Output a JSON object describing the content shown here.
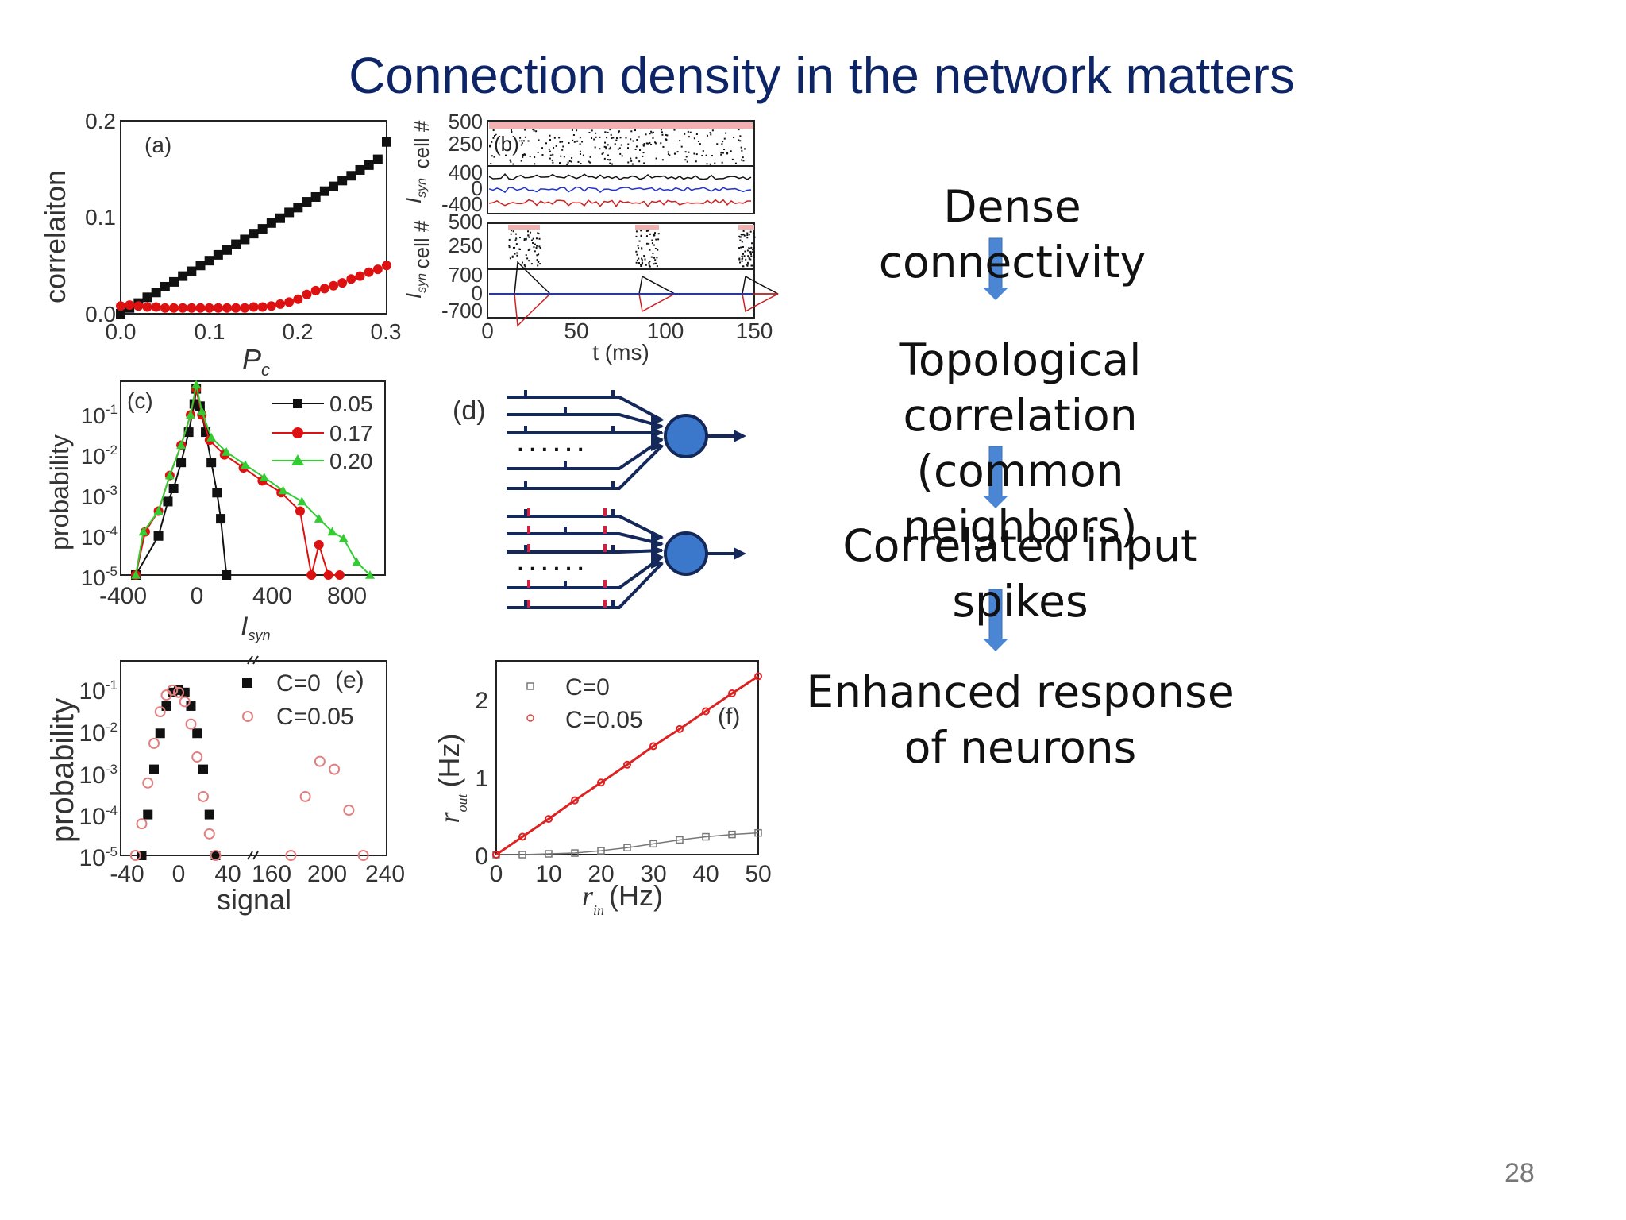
{
  "slide": {
    "title": "Connection density in the network matters",
    "page_number": "28"
  },
  "flow": {
    "step1": "Dense connectivity",
    "step2_line1": "Topological correlation",
    "step2_line2": "(common neighbors)",
    "step3": "Correlated input spikes",
    "step4_line1": "Enhanced response",
    "step4_line2": "of neurons",
    "arrow_color": "#4a86d4"
  },
  "panel_a": {
    "label": "(a)",
    "ylabel": "correlaiton",
    "xlabel": "P",
    "xlabel_sub": "c",
    "xticks": [
      "0.0",
      "0.1",
      "0.2",
      "0.3"
    ],
    "yticks": [
      "0.0",
      "0.1",
      "0.2"
    ]
  },
  "panel_b": {
    "label": "(b)",
    "xlabel": "t (ms)",
    "xticks": [
      "0",
      "50",
      "100",
      "150"
    ],
    "ylabel_cell": "cell #",
    "ylabel_isyn": "I",
    "ylabel_isyn_sub": "syn",
    "raster_ticks": [
      "500",
      "250"
    ],
    "isyn_top_ticks": [
      "400",
      "0",
      "-400"
    ],
    "isyn_bottom_ticks": [
      "700",
      "0",
      "-700"
    ]
  },
  "panel_c": {
    "label": "(c)",
    "ylabel": "probability",
    "xlabel": "I",
    "xlabel_sub": "syn",
    "xticks": [
      "-400",
      "0",
      "400",
      "800"
    ],
    "yticks": [
      "10",
      "10",
      "10",
      "10",
      "10"
    ],
    "ytick_exps": [
      "-1",
      "-2",
      "-3",
      "-4",
      "-5"
    ],
    "legend": [
      "0.05",
      "0.17",
      "0.20"
    ]
  },
  "panel_d": {
    "label": "(d)",
    "dots": "......"
  },
  "panel_e": {
    "label": "(e)",
    "ylabel": "probability",
    "xlabel": "signal",
    "xticks": [
      "-40",
      "0",
      "40",
      "160",
      "200",
      "240"
    ],
    "yticks": [
      "10",
      "10",
      "10",
      "10",
      "10"
    ],
    "ytick_exps": [
      "-1",
      "-2",
      "-3",
      "-4",
      "-5"
    ],
    "legend": [
      "C=0",
      "C=0.05"
    ]
  },
  "panel_f": {
    "label": "(f)",
    "ylabel": "r",
    "ylabel_sub": "out",
    "ylabel_unit": "(Hz)",
    "xlabel": "r",
    "xlabel_sub": "in",
    "xlabel_unit": "(Hz)",
    "xticks": [
      "0",
      "10",
      "20",
      "30",
      "40",
      "50"
    ],
    "yticks": [
      "0",
      "1",
      "2"
    ],
    "legend": [
      "C=0",
      "C=0.05"
    ]
  },
  "chart_data": [
    {
      "type": "scatter",
      "panel": "(a)",
      "xlabel": "P_c",
      "ylabel": "correlaiton",
      "xlim": [
        0.0,
        0.3
      ],
      "ylim": [
        0.0,
        0.2
      ],
      "series": [
        {
          "color": "#111111",
          "marker": "square",
          "x": [
            0.0,
            0.01,
            0.02,
            0.03,
            0.04,
            0.05,
            0.06,
            0.07,
            0.08,
            0.09,
            0.1,
            0.11,
            0.12,
            0.13,
            0.14,
            0.15,
            0.16,
            0.17,
            0.18,
            0.19,
            0.2,
            0.21,
            0.22,
            0.23,
            0.24,
            0.25,
            0.26,
            0.27,
            0.28,
            0.29,
            0.3
          ],
          "y": [
            0.0,
            0.006,
            0.011,
            0.017,
            0.022,
            0.028,
            0.033,
            0.039,
            0.044,
            0.05,
            0.055,
            0.061,
            0.066,
            0.072,
            0.077,
            0.083,
            0.088,
            0.094,
            0.099,
            0.105,
            0.11,
            0.116,
            0.121,
            0.127,
            0.132,
            0.138,
            0.143,
            0.149,
            0.154,
            0.16,
            0.178
          ]
        },
        {
          "color": "#dd1111",
          "marker": "circle",
          "x": [
            0.0,
            0.01,
            0.02,
            0.03,
            0.04,
            0.05,
            0.06,
            0.07,
            0.08,
            0.09,
            0.1,
            0.11,
            0.12,
            0.13,
            0.14,
            0.15,
            0.16,
            0.17,
            0.18,
            0.19,
            0.2,
            0.21,
            0.22,
            0.23,
            0.24,
            0.25,
            0.26,
            0.27,
            0.28,
            0.29,
            0.3
          ],
          "y": [
            0.008,
            0.009,
            0.008,
            0.007,
            0.007,
            0.006,
            0.006,
            0.006,
            0.006,
            0.006,
            0.006,
            0.006,
            0.006,
            0.006,
            0.006,
            0.007,
            0.007,
            0.008,
            0.01,
            0.012,
            0.015,
            0.02,
            0.024,
            0.026,
            0.029,
            0.032,
            0.036,
            0.039,
            0.043,
            0.046,
            0.05
          ]
        }
      ]
    },
    {
      "type": "line",
      "panel": "(c)",
      "xlabel": "I_syn",
      "ylabel": "probability",
      "yscale": "log",
      "xlim": [
        -400,
        1000
      ],
      "ylim": [
        1e-05,
        0.3
      ],
      "series": [
        {
          "name": "0.05",
          "color": "#111111",
          "marker": "square",
          "x": [
            -320,
            -200,
            -150,
            -120,
            -80,
            -40,
            -10,
            0,
            20,
            50,
            80,
            110,
            130,
            160
          ],
          "y": [
            1e-05,
            8e-05,
            0.0005,
            0.001,
            0.004,
            0.02,
            0.09,
            0.2,
            0.08,
            0.02,
            0.004,
            0.0008,
            0.0002,
            1e-05
          ]
        },
        {
          "name": "0.17",
          "color": "#dd1111",
          "marker": "circle",
          "x": [
            -320,
            -270,
            -200,
            -140,
            -80,
            -30,
            0,
            30,
            70,
            150,
            250,
            350,
            450,
            550,
            610,
            650,
            700,
            760
          ],
          "y": [
            1e-05,
            0.0001,
            0.0003,
            0.002,
            0.01,
            0.05,
            0.2,
            0.05,
            0.013,
            0.006,
            0.003,
            0.0015,
            0.0008,
            0.0003,
            1e-05,
            5e-05,
            1e-05,
            1e-05
          ]
        },
        {
          "name": "0.20",
          "color": "#33cc33",
          "marker": "triangle",
          "x": [
            -320,
            -280,
            -200,
            -140,
            -80,
            -30,
            0,
            30,
            80,
            160,
            260,
            360,
            460,
            560,
            650,
            720,
            780,
            850,
            920
          ],
          "y": [
            1e-05,
            0.0001,
            0.0003,
            0.002,
            0.01,
            0.05,
            0.25,
            0.06,
            0.015,
            0.007,
            0.0035,
            0.0018,
            0.0009,
            0.0005,
            0.0002,
            0.0001,
            7e-05,
            2e-05,
            1e-05
          ]
        }
      ]
    },
    {
      "type": "scatter",
      "panel": "(e)",
      "xlabel": "signal",
      "ylabel": "probability",
      "yscale": "log",
      "ylim": [
        1e-05,
        0.2
      ],
      "series": [
        {
          "name": "C=0",
          "color": "#111111",
          "marker": "square",
          "x": [
            -30,
            -25,
            -20,
            -15,
            -10,
            -5,
            0,
            5,
            10,
            15,
            20,
            25,
            30
          ],
          "y": [
            1e-05,
            8e-05,
            0.0008,
            0.005,
            0.02,
            0.04,
            0.045,
            0.04,
            0.02,
            0.005,
            0.0008,
            8e-05,
            1e-05
          ]
        },
        {
          "name": "C=0.05",
          "color": "#e08080",
          "marker": "circle-open",
          "x": [
            -35,
            -30,
            -25,
            -20,
            -15,
            -10,
            -5,
            0,
            5,
            10,
            15,
            20,
            25,
            30,
            175,
            185,
            195,
            205,
            215,
            225
          ],
          "y": [
            1e-05,
            5e-05,
            0.0004,
            0.003,
            0.015,
            0.035,
            0.045,
            0.04,
            0.025,
            0.008,
            0.0015,
            0.0002,
            3e-05,
            1e-05,
            1e-05,
            0.0002,
            0.0012,
            0.0008,
            0.0001,
            1e-05
          ]
        }
      ]
    },
    {
      "type": "line",
      "panel": "(f)",
      "xlabel": "r_in (Hz)",
      "ylabel": "r_out (Hz)",
      "xlim": [
        0,
        50
      ],
      "ylim": [
        0,
        2.5
      ],
      "series": [
        {
          "name": "C=0",
          "color": "#777777",
          "marker": "square-open",
          "x": [
            0,
            5,
            10,
            15,
            20,
            25,
            30,
            35,
            40,
            45,
            50
          ],
          "y": [
            0,
            0,
            0.01,
            0.02,
            0.05,
            0.09,
            0.14,
            0.19,
            0.23,
            0.26,
            0.28
          ]
        },
        {
          "name": "C=0.05",
          "color": "#dd2222",
          "marker": "circle-open",
          "x": [
            0,
            5,
            10,
            15,
            20,
            25,
            30,
            35,
            40,
            45,
            50
          ],
          "y": [
            0,
            0.23,
            0.46,
            0.7,
            0.93,
            1.16,
            1.4,
            1.62,
            1.85,
            2.08,
            2.3
          ]
        }
      ]
    }
  ]
}
